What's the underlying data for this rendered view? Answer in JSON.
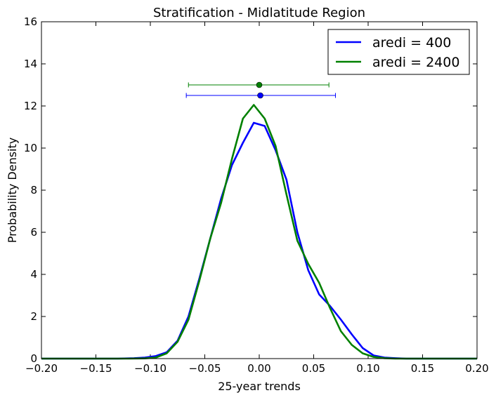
{
  "chart_data": {
    "type": "line",
    "title": "Stratification  - Midlatitude Region",
    "xlabel": "25-year trends",
    "ylabel": "Probability Density",
    "xlim": [
      -0.2,
      0.2
    ],
    "ylim": [
      0,
      16
    ],
    "xticks": [
      -0.2,
      -0.15,
      -0.1,
      -0.05,
      0.0,
      0.05,
      0.1,
      0.15,
      0.2
    ],
    "xtick_labels": [
      "−0.20",
      "−0.15",
      "−0.10",
      "−0.05",
      "0.00",
      "0.05",
      "0.10",
      "0.15",
      "0.20"
    ],
    "yticks": [
      0,
      2,
      4,
      6,
      8,
      10,
      12,
      14,
      16
    ],
    "ytick_labels": [
      "0",
      "2",
      "4",
      "6",
      "8",
      "10",
      "12",
      "14",
      "16"
    ],
    "grid": false,
    "legend_position": "top-right",
    "series": [
      {
        "name": "aredi = 400",
        "color": "#0000ff",
        "x": [
          -0.2,
          -0.13,
          -0.115,
          -0.105,
          -0.095,
          -0.085,
          -0.075,
          -0.065,
          -0.055,
          -0.045,
          -0.035,
          -0.025,
          -0.015,
          -0.005,
          0.005,
          0.015,
          0.025,
          0.035,
          0.045,
          0.055,
          0.065,
          0.075,
          0.085,
          0.095,
          0.105,
          0.115,
          0.125,
          0.135,
          0.2
        ],
        "y": [
          0.0,
          0.0,
          0.02,
          0.05,
          0.12,
          0.3,
          0.85,
          2.0,
          3.8,
          5.7,
          7.6,
          9.2,
          10.25,
          11.2,
          11.05,
          9.9,
          8.5,
          6.0,
          4.2,
          3.05,
          2.5,
          1.85,
          1.15,
          0.5,
          0.15,
          0.05,
          0.02,
          0.0,
          0.0
        ]
      },
      {
        "name": "aredi = 2400",
        "color": "#008000",
        "x": [
          -0.2,
          -0.12,
          -0.105,
          -0.095,
          -0.085,
          -0.075,
          -0.065,
          -0.055,
          -0.045,
          -0.035,
          -0.025,
          -0.015,
          -0.005,
          0.005,
          0.015,
          0.025,
          0.035,
          0.045,
          0.055,
          0.065,
          0.075,
          0.085,
          0.095,
          0.105,
          0.115,
          0.125,
          0.2
        ],
        "y": [
          0.0,
          0.0,
          0.01,
          0.05,
          0.25,
          0.8,
          1.85,
          3.7,
          5.7,
          7.4,
          9.5,
          11.4,
          12.05,
          11.4,
          10.1,
          7.8,
          5.6,
          4.5,
          3.6,
          2.4,
          1.3,
          0.65,
          0.25,
          0.08,
          0.02,
          0.0,
          0.0
        ]
      }
    ],
    "error_bars": [
      {
        "series": "aredi = 2400",
        "color": "#008000",
        "mean": 0.0,
        "y": 13.0,
        "xmin": -0.065,
        "xmax": 0.064
      },
      {
        "series": "aredi = 400",
        "color": "#0000ff",
        "mean": 0.001,
        "y": 12.5,
        "xmin": -0.067,
        "xmax": 0.07
      }
    ]
  }
}
